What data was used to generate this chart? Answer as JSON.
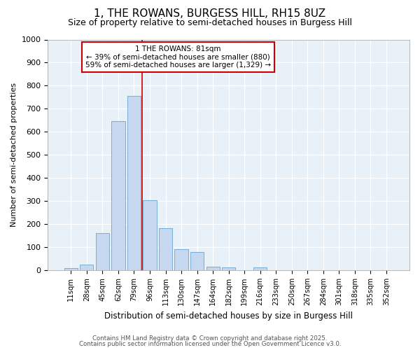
{
  "title1": "1, THE ROWANS, BURGESS HILL, RH15 8UZ",
  "title2": "Size of property relative to semi-detached houses in Burgess Hill",
  "xlabel": "Distribution of semi-detached houses by size in Burgess Hill",
  "ylabel": "Number of semi-detached properties",
  "categories": [
    "11sqm",
    "28sqm",
    "45sqm",
    "62sqm",
    "79sqm",
    "96sqm",
    "113sqm",
    "130sqm",
    "147sqm",
    "164sqm",
    "182sqm",
    "199sqm",
    "216sqm",
    "233sqm",
    "250sqm",
    "267sqm",
    "284sqm",
    "301sqm",
    "318sqm",
    "335sqm",
    "352sqm"
  ],
  "values": [
    8,
    25,
    160,
    645,
    755,
    305,
    183,
    90,
    78,
    15,
    12,
    0,
    12,
    0,
    0,
    0,
    0,
    0,
    0,
    0,
    0
  ],
  "bar_color": "#c5d8f0",
  "bar_edge_color": "#7aadd4",
  "property_line_x": 4.5,
  "annotation_title": "1 THE ROWANS: 81sqm",
  "annotation_line1": "← 39% of semi-detached houses are smaller (880)",
  "annotation_line2": "59% of semi-detached houses are larger (1,329) →",
  "annotation_box_color": "#ffffff",
  "annotation_box_edge_color": "#cc0000",
  "property_line_color": "#cc0000",
  "ylim": [
    0,
    1000
  ],
  "yticks": [
    0,
    100,
    200,
    300,
    400,
    500,
    600,
    700,
    800,
    900,
    1000
  ],
  "footer1": "Contains HM Land Registry data © Crown copyright and database right 2025.",
  "footer2": "Contains public sector information licensed under the Open Government Licence v3.0.",
  "bg_color": "#ffffff",
  "plot_bg_color": "#e8f0f8",
  "grid_color": "#ffffff",
  "title1_fontsize": 11,
  "title2_fontsize": 9
}
